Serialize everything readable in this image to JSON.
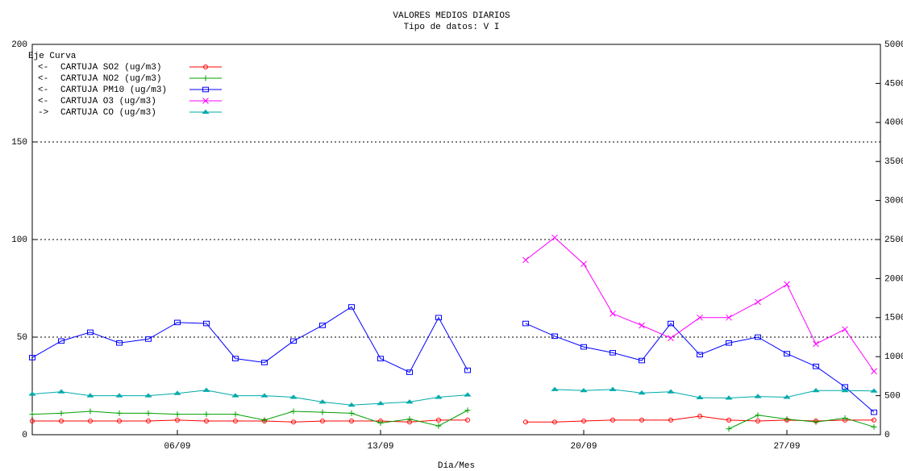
{
  "chart_data": {
    "type": "line",
    "title": "VALORES MEDIOS DIARIOS",
    "subtitle": "Tipo de datos:  V I",
    "x_label": "Día/Mes",
    "legend_header": "Eje Curva",
    "categories": [
      null,
      null,
      null,
      null,
      null,
      "06/09",
      null,
      null,
      null,
      null,
      null,
      null,
      "13/09",
      null,
      null,
      null,
      null,
      null,
      null,
      "20/09",
      null,
      null,
      null,
      null,
      null,
      null,
      "27/09",
      null,
      null,
      null
    ],
    "ylim": [
      0,
      200
    ],
    "yticks": [
      0,
      50,
      100,
      150,
      200
    ],
    "y2lim": [
      0,
      5000
    ],
    "y2ticks": [
      0,
      500,
      1000,
      1500,
      2000,
      2500,
      3000,
      3500,
      4000,
      4500,
      5000
    ],
    "grid": true,
    "series": [
      {
        "name": "CARTUJA SO2  (ug/m3)",
        "legend_arrow": "<-",
        "color": "#ff0000",
        "marker": "circle",
        "values": [
          7,
          7,
          7,
          7,
          7,
          7.5,
          7,
          7,
          7,
          6.5,
          7,
          7,
          7,
          6.5,
          7.5,
          7.5,
          null,
          6.5,
          6.5,
          7,
          7.5,
          7.5,
          7.5,
          9.5,
          7.5,
          7,
          7.5,
          7,
          7.5,
          7.5
        ]
      },
      {
        "name": "CARTUJA NO2  (ug/m3)",
        "legend_arrow": "<-",
        "color": "#00a000",
        "marker": "plus",
        "values": [
          10.5,
          11,
          12,
          11,
          11,
          10.5,
          10.5,
          10.5,
          7.5,
          12,
          11.5,
          11,
          6,
          8,
          4.5,
          12.5,
          null,
          null,
          null,
          null,
          null,
          null,
          null,
          null,
          3,
          10,
          8,
          6.5,
          8.5,
          4
        ]
      },
      {
        "name": "CARTUJA PM10  (ug/m3)",
        "legend_arrow": "<-",
        "color": "#0000ff",
        "marker": "square",
        "values": [
          39.5,
          48,
          52.5,
          47,
          49,
          57.5,
          57,
          39,
          37,
          48,
          56,
          65.5,
          39,
          32,
          60,
          33,
          null,
          57,
          50.5,
          45,
          42,
          38,
          57,
          41,
          47,
          50,
          41.5,
          35,
          24.5,
          11.5
        ]
      },
      {
        "name": "CARTUJA O3  (ug/m3)",
        "legend_arrow": "<-",
        "color": "#ff00ff",
        "marker": "x",
        "values": [
          null,
          null,
          null,
          null,
          null,
          null,
          null,
          null,
          null,
          null,
          null,
          null,
          null,
          null,
          null,
          null,
          null,
          89.5,
          101,
          87.5,
          62,
          56,
          49.5,
          60,
          60,
          68,
          77,
          46.5,
          54,
          32.5
        ]
      },
      {
        "name": "CARTUJA CO  (ug/m3)",
        "legend_arrow": "->",
        "color": "#00aaaa",
        "marker": "triangle",
        "axis": "y2",
        "values": [
          520,
          550,
          500,
          500,
          500,
          530,
          570,
          500,
          500,
          480,
          420,
          380,
          400,
          420,
          480,
          510,
          null,
          null,
          580,
          565,
          580,
          535,
          550,
          475,
          470,
          490,
          480,
          565,
          565,
          560
        ]
      }
    ]
  }
}
